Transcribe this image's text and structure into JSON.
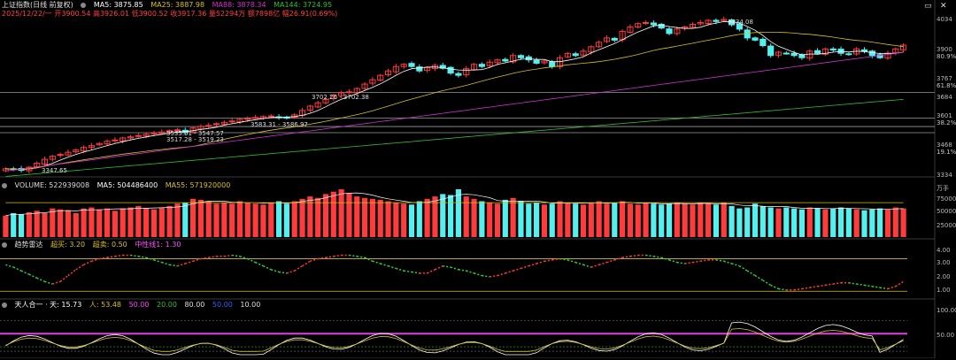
{
  "colors": {
    "up": "#ff3b3b",
    "down": "#54f0f0",
    "ma5": "#ffffff",
    "ma25": "#d8c020",
    "ma88": "#d030d0",
    "ma144": "#30c030",
    "grid": "#5a5a5a"
  },
  "header": {
    "title": "上证指数(日线 前复权)",
    "ma5": "MA5: 3875.85",
    "ma25": "MA25: 3887.98",
    "ma88": "MA88: 3878.34",
    "ma144": "MA144: 3724.95",
    "row2": "2025/12/22/一 开3900.54 高3926.01 低3900.52 收3917.36 量52294万 额7898亿 幅26.91(0.69%)"
  },
  "price_axis": {
    "ticks": [
      "4034",
      "3900",
      "3767",
      "3684",
      "3601",
      "3468",
      "3334"
    ],
    "pcts": [
      "80.9%",
      "61.8%",
      "38.2%",
      "19.1%"
    ]
  },
  "annotations": {
    "high": "4034.08",
    "low": "3347.65",
    "r1": "3702.26 - 3702.38",
    "r2": "3583.31 - 3586.97",
    "r3": "3535.01 - 3547.57",
    "r4": "3517.28 - 3519.23"
  },
  "volume": {
    "header_volume": "VOLUME: 522939008",
    "header_ma5": "MA5: 504486400",
    "header_ma55": "MA55: 571920000",
    "ticks": [
      "万手",
      "75000",
      "50000",
      "25000"
    ]
  },
  "trend": {
    "title": "趋势雷达",
    "overbuy": "超买: 3.20",
    "oversell": "超卖: 0.50",
    "mid": "中性线1: 1.30",
    "ticks": [
      "4.00",
      "3.00",
      "2.00",
      "1.00"
    ]
  },
  "tianren": {
    "title": "天人合一 · 天: 15.73",
    "ren": "人: 53.48",
    "v1": "50.00",
    "v2": "20.00",
    "v3": "80.00",
    "v4": "50.00",
    "v5": "10.00",
    "ticks": [
      "100.00",
      "50.00"
    ]
  },
  "chart_data": {
    "type": "candlestick",
    "title": "上证指数(日线 前复权)",
    "date": "2025/12/22",
    "ohlc_last": {
      "open": 3900.54,
      "high": 3926.01,
      "low": 3900.52,
      "close": 3917.36
    },
    "closes": [
      3355,
      3352,
      3348,
      3362,
      3380,
      3398,
      3412,
      3420,
      3430,
      3440,
      3452,
      3460,
      3470,
      3480,
      3486,
      3495,
      3500,
      3506,
      3512,
      3518,
      3522,
      3528,
      3532,
      3520,
      3540,
      3548,
      3552,
      3560,
      3566,
      3572,
      3580,
      3584,
      3588,
      3592,
      3595,
      3590,
      3585,
      3600,
      3620,
      3640,
      3655,
      3670,
      3690,
      3700,
      3705,
      3720,
      3740,
      3760,
      3780,
      3800,
      3820,
      3830,
      3820,
      3800,
      3815,
      3825,
      3812,
      3790,
      3780,
      3810,
      3830,
      3820,
      3840,
      3850,
      3845,
      3870,
      3860,
      3850,
      3835,
      3845,
      3820,
      3860,
      3880,
      3870,
      3890,
      3910,
      3930,
      3950,
      3940,
      3980,
      4000,
      4015,
      4020,
      4010,
      3995,
      3970,
      3990,
      4000,
      4012,
      4020,
      4030,
      4025,
      4034,
      4010,
      3990,
      3950,
      3940,
      3915,
      3870,
      3885,
      3880,
      3870,
      3860,
      3890,
      3880,
      3900,
      3895,
      3880,
      3875,
      3900,
      3890,
      3870,
      3860,
      3880,
      3900,
      3917
    ],
    "volume_heights": [
      0.45,
      0.5,
      0.48,
      0.52,
      0.55,
      0.5,
      0.6,
      0.58,
      0.55,
      0.5,
      0.6,
      0.62,
      0.58,
      0.6,
      0.55,
      0.6,
      0.62,
      0.65,
      0.6,
      0.58,
      0.62,
      0.65,
      0.7,
      0.72,
      0.8,
      0.78,
      0.75,
      0.7,
      0.72,
      0.7,
      0.75,
      0.72,
      0.7,
      0.68,
      0.72,
      0.75,
      0.7,
      0.75,
      0.8,
      0.85,
      0.82,
      0.9,
      0.95,
      1.0,
      0.92,
      0.85,
      0.82,
      0.8,
      0.78,
      0.75,
      0.72,
      0.7,
      0.68,
      0.75,
      0.8,
      0.85,
      0.9,
      0.88,
      1.0,
      0.85,
      0.8,
      0.75,
      0.72,
      0.7,
      0.78,
      0.82,
      0.75,
      0.7,
      0.72,
      0.68,
      0.7,
      0.75,
      0.72,
      0.7,
      0.68,
      0.72,
      0.75,
      0.7,
      0.72,
      0.75,
      0.7,
      0.68,
      0.72,
      0.7,
      0.68,
      0.7,
      0.72,
      0.7,
      0.68,
      0.72,
      0.7,
      0.68,
      0.72,
      0.65,
      0.6,
      0.62,
      0.7,
      0.65,
      0.62,
      0.6,
      0.62,
      0.6,
      0.58,
      0.62,
      0.6,
      0.58,
      0.6,
      0.62,
      0.6,
      0.58,
      0.56,
      0.58,
      0.6,
      0.58,
      0.62,
      0.6
    ],
    "trend_values": [
      2.7,
      2.5,
      2.2,
      1.9,
      1.6,
      1.3,
      1.1,
      1.3,
      1.8,
      2.3,
      2.7,
      3.0,
      3.2,
      3.3,
      3.4,
      3.5,
      3.5,
      3.4,
      3.3,
      3.1,
      2.9,
      2.7,
      2.6,
      2.8,
      3.0,
      3.2,
      3.3,
      3.4,
      3.4,
      3.5,
      3.4,
      3.2,
      2.9,
      2.6,
      2.3,
      2.1,
      2.0,
      2.2,
      2.6,
      3.0,
      3.2,
      3.3,
      3.4,
      3.5,
      3.5,
      3.4,
      3.3,
      3.0,
      2.8,
      2.6,
      2.4,
      2.2,
      2.1,
      2.0,
      2.0,
      2.3,
      2.6,
      2.5,
      2.3,
      2.2,
      2.0,
      1.8,
      1.7,
      1.8,
      2.0,
      2.2,
      2.4,
      2.6,
      2.8,
      3.0,
      3.1,
      3.2,
      3.1,
      2.9,
      2.7,
      2.5,
      2.7,
      2.9,
      3.1,
      3.3,
      3.4,
      3.5,
      3.5,
      3.4,
      3.3,
      3.1,
      2.9,
      2.8,
      2.9,
      3.0,
      3.1,
      3.1,
      3.0,
      2.8,
      2.6,
      2.2,
      1.8,
      1.4,
      1.0,
      0.7,
      0.6,
      0.6,
      0.7,
      0.8,
      0.9,
      1.0,
      1.1,
      1.2,
      1.2,
      1.1,
      1.0,
      0.9,
      0.8,
      0.7,
      0.9,
      1.3
    ]
  }
}
